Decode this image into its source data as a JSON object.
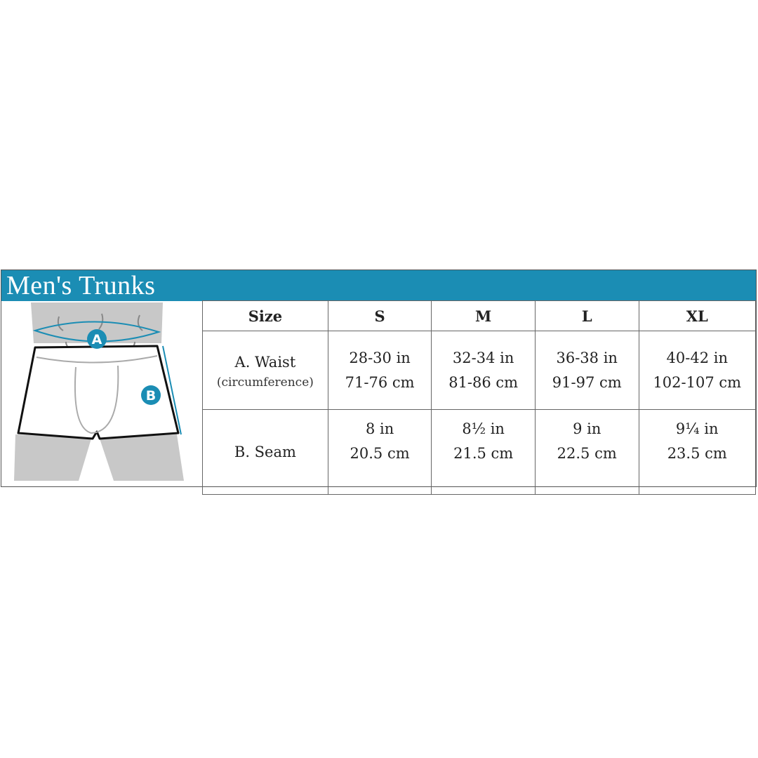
{
  "title": "Men's Trunks",
  "illustration": {
    "label_a": "A",
    "label_b": "B",
    "accent_color": "#1b8db4"
  },
  "table": {
    "headers": [
      "Size",
      "S",
      "M",
      "L",
      "XL"
    ],
    "waist": {
      "label": "A. Waist",
      "sublabel": "(circumference)",
      "values": [
        [
          "28-30 in",
          "71-76 cm"
        ],
        [
          "32-34 in",
          "81-86 cm"
        ],
        [
          "36-38 in",
          "91-97 cm"
        ],
        [
          "40-42 in",
          "102-107 cm"
        ]
      ]
    },
    "seam": {
      "label": "B. Seam",
      "values": [
        [
          "8 in",
          "20.5 cm"
        ],
        [
          "8½ in",
          "21.5 cm"
        ],
        [
          "9 in",
          "22.5 cm"
        ],
        [
          "9¼ in",
          "23.5 cm"
        ]
      ]
    }
  }
}
